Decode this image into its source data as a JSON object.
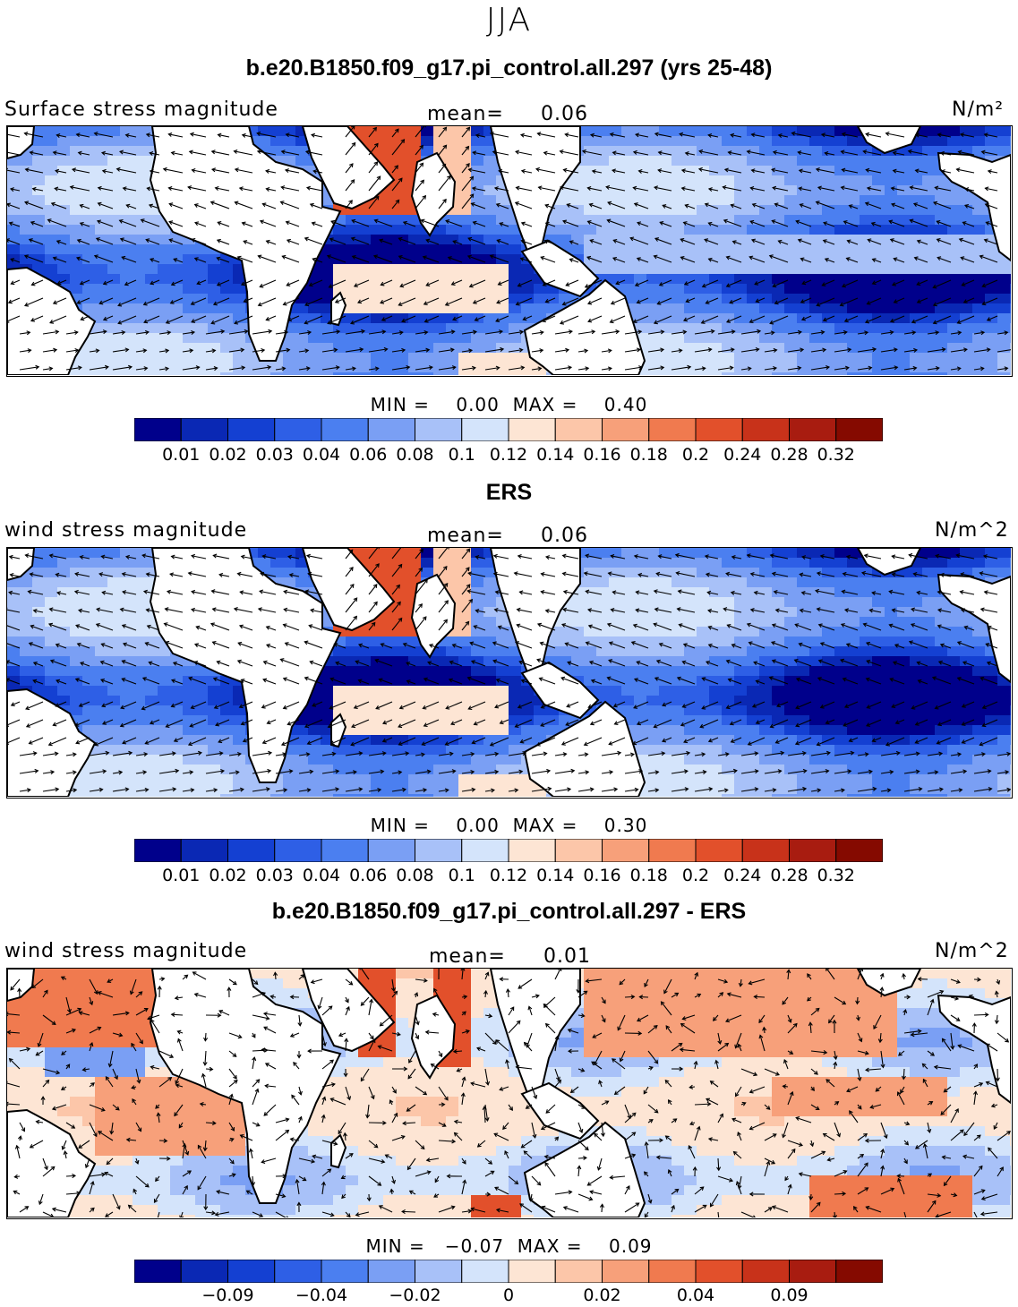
{
  "season": "JJA",
  "panels": [
    {
      "title": "b.e20.B1850.f09_g17.pi_control.all.297 (yrs 25-48)",
      "variable_label": "Surface stress magnitude",
      "mean_label": "mean=",
      "mean_value": "0.06",
      "units": "N/m²",
      "min_label": "MIN =",
      "min_value": "0.00",
      "max_label": "MAX =",
      "max_value": "0.40"
    },
    {
      "title": "ERS",
      "variable_label": "wind stress magnitude",
      "mean_label": "mean=",
      "mean_value": "0.06",
      "units": "N/m^2",
      "min_label": "MIN =",
      "min_value": "0.00",
      "max_label": "MAX =",
      "max_value": "0.30"
    },
    {
      "title": "b.e20.B1850.f09_g17.pi_control.all.297 - ERS",
      "variable_label": "wind stress magnitude",
      "mean_label": "mean=",
      "mean_value": "0.01",
      "units": "N/m^2",
      "min_label": "MIN =",
      "min_value": "−0.07",
      "max_label": "MAX =",
      "max_value": "0.09"
    }
  ],
  "chart_data": [
    {
      "type": "heatmap",
      "title": "b.e20.B1850.f09_g17.pi_control.all.297 (yrs 25-48)",
      "variable": "Surface stress magnitude",
      "units": "N/m²",
      "mean": 0.06,
      "min": 0.0,
      "max": 0.4,
      "colorbar_ticks": [
        "0.01",
        "0.02",
        "0.03",
        "0.04",
        "0.06",
        "0.08",
        "0.1",
        "0.12",
        "0.14",
        "0.16",
        "0.18",
        "0.2",
        "0.24",
        "0.28",
        "0.32"
      ],
      "overlay": "wind stress vectors"
    },
    {
      "type": "heatmap",
      "title": "ERS",
      "variable": "wind stress magnitude",
      "units": "N/m^2",
      "mean": 0.06,
      "min": 0.0,
      "max": 0.3,
      "colorbar_ticks": [
        "0.01",
        "0.02",
        "0.03",
        "0.04",
        "0.06",
        "0.08",
        "0.1",
        "0.12",
        "0.14",
        "0.16",
        "0.18",
        "0.2",
        "0.24",
        "0.28",
        "0.32"
      ],
      "overlay": "wind stress vectors"
    },
    {
      "type": "heatmap",
      "title": "b.e20.B1850.f09_g17.pi_control.all.297 - ERS",
      "variable": "wind stress magnitude",
      "units": "N/m^2",
      "mean": 0.01,
      "min": -0.07,
      "max": 0.09,
      "colorbar_ticks": [
        "−0.09",
        "−0.04",
        "−0.02",
        "0",
        "0.02",
        "0.04",
        "0.09"
      ],
      "overlay": "wind stress difference vectors"
    }
  ],
  "colors": {
    "scale": [
      "#00008b",
      "#0a28b4",
      "#1440d2",
      "#2e5fe6",
      "#4b7ff0",
      "#7a9ff4",
      "#a8c1f8",
      "#d4e4fb",
      "#fde5d4",
      "#fcc6a9",
      "#f7a07a",
      "#f07a4f",
      "#e2502b",
      "#c8321a",
      "#a81c10",
      "#850a00"
    ]
  }
}
